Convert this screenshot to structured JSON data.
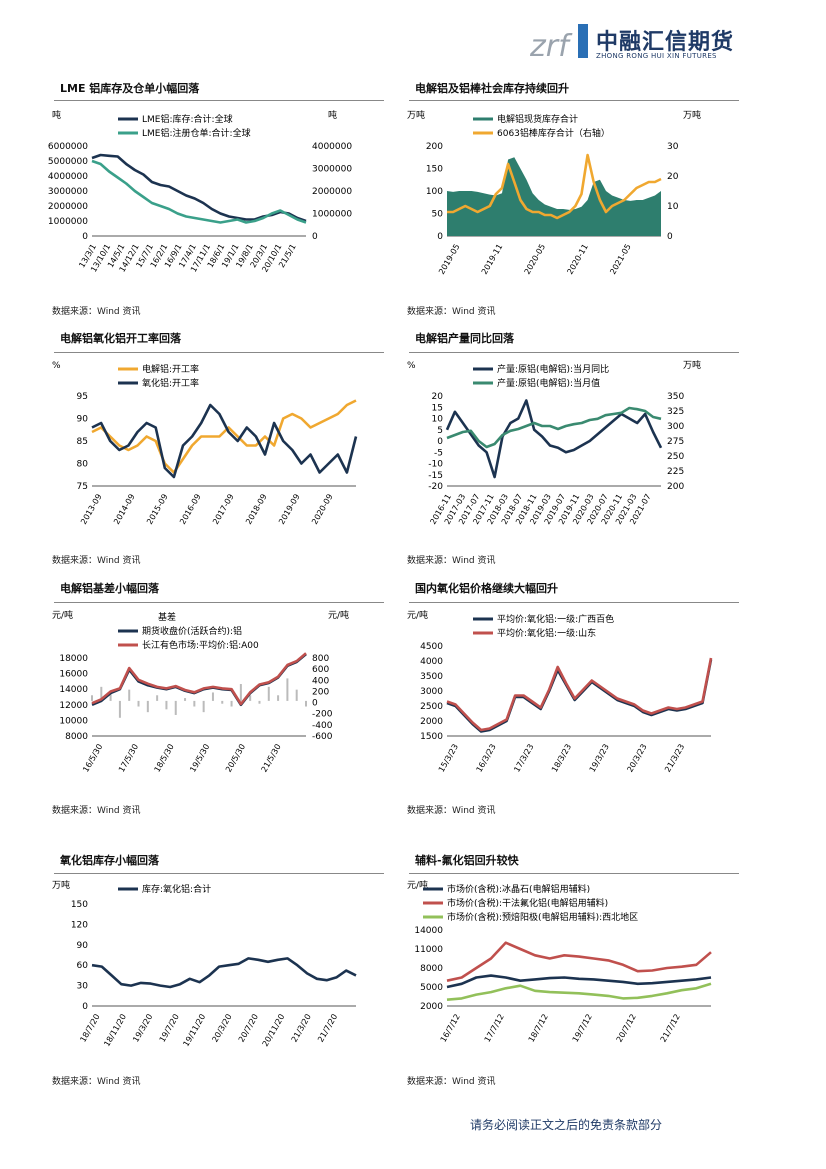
{
  "header": {
    "logo_mark": "zrf",
    "logo_cn": "中融汇信期货",
    "logo_en": "ZHONG RONG HUI XIN FUTURES"
  },
  "footer": {
    "disclaimer": "请务必阅读正文之后的免责条款部分"
  },
  "source_label": "数据来源：Wind 资讯",
  "panels": [
    {
      "title": "LME 铝库存及仓单小幅回落",
      "chart_data": {
        "type": "line",
        "left_unit": "吨",
        "right_unit": "吨",
        "legend": [
          "LME铝:库存:合计:全球",
          "LME铝:注册仓单:合计:全球"
        ],
        "left_ticks": [
          "6000000",
          "5000000",
          "4000000",
          "3000000",
          "2000000",
          "1000000",
          "0"
        ],
        "right_ticks": [
          "4000000",
          "3000000",
          "2000000",
          "1000000",
          "0"
        ],
        "x_ticks": [
          "13/3/1",
          "13/10/1",
          "14/5/1",
          "14/12/1",
          "15/7/1",
          "16/2/1",
          "16/9/1",
          "17/4/1",
          "17/11/1",
          "18/6/1",
          "19/1/1",
          "19/8/1",
          "20/3/1",
          "20/10/1",
          "21/5/1"
        ],
        "ylim": [
          0,
          6000000
        ],
        "series": [
          {
            "name": "LME铝:库存:合计:全球",
            "color": "#1c3350",
            "values": [
              5200000,
              5400000,
              5350000,
              5300000,
              4800000,
              4400000,
              4100000,
              3600000,
              3400000,
              3300000,
              3000000,
              2700000,
              2500000,
              2200000,
              1800000,
              1500000,
              1300000,
              1200000,
              1100000,
              1100000,
              1300000,
              1400000,
              1600000,
              1500000,
              1200000,
              1000000
            ]
          },
          {
            "name": "LME铝:注册仓单:合计:全球",
            "color": "#3aa08a",
            "values": [
              5000000,
              4800000,
              4300000,
              3900000,
              3500000,
              3000000,
              2600000,
              2200000,
              2000000,
              1800000,
              1500000,
              1300000,
              1200000,
              1100000,
              1000000,
              900000,
              1000000,
              1100000,
              900000,
              1000000,
              1200000,
              1500000,
              1700000,
              1400000,
              1100000,
              900000
            ]
          }
        ]
      }
    },
    {
      "title": "电解铝及铝棒社会库存持续回升",
      "chart_data": {
        "type": "area",
        "left_unit": "万吨",
        "right_unit": "万吨",
        "legend": [
          "电解铝现货库存合计",
          "6063铝棒库存合计（右轴）"
        ],
        "left_ticks": [
          "200",
          "150",
          "100",
          "50",
          "0"
        ],
        "right_ticks": [
          "30",
          "20",
          "10",
          "0"
        ],
        "x_ticks": [
          "2019-05",
          "2019-11",
          "2020-05",
          "2020-11",
          "2021-05"
        ],
        "ylim": [
          0,
          200
        ],
        "series": [
          {
            "name": "电解铝现货库存合计",
            "color": "#2e7e6e",
            "values": [
              100,
              98,
              100,
              100,
              100,
              98,
              95,
              92,
              90,
              95,
              170,
              175,
              150,
              125,
              95,
              80,
              70,
              65,
              60,
              60,
              58,
              60,
              65,
              80,
              120,
              125,
              100,
              90,
              85,
              80,
              78,
              80,
              80,
              85,
              90,
              100
            ]
          },
          {
            "name": "6063铝棒库存合计（右轴）",
            "color": "#f0a830",
            "values": [
              8,
              8,
              9,
              10,
              9,
              8,
              9,
              10,
              14,
              16,
              24,
              18,
              12,
              9,
              8,
              8,
              7,
              7,
              6,
              7,
              8,
              10,
              14,
              27,
              18,
              12,
              8,
              10,
              11,
              12,
              14,
              16,
              17,
              18,
              18,
              19
            ]
          }
        ]
      }
    },
    {
      "title": "电解铝氧化铝开工率回落",
      "chart_data": {
        "type": "line",
        "left_unit": "%",
        "legend": [
          "电解铝:开工率",
          "氧化铝:开工率"
        ],
        "left_ticks": [
          "95",
          "90",
          "85",
          "80",
          "75"
        ],
        "x_ticks": [
          "2013-09",
          "2014-09",
          "2015-09",
          "2016-09",
          "2017-09",
          "2018-09",
          "2019-09",
          "2020-09"
        ],
        "ylim": [
          75,
          95
        ],
        "series": [
          {
            "name": "电解铝:开工率",
            "color": "#f0a830",
            "values": [
              87,
              88,
              86,
              84,
              83,
              84,
              86,
              85,
              80,
              78,
              81,
              84,
              86,
              86,
              86,
              88,
              86,
              84,
              84,
              86,
              84,
              90,
              91,
              90,
              88,
              89,
              90,
              91,
              93,
              94
            ]
          },
          {
            "name": "氧化铝:开工率",
            "color": "#1c3350",
            "values": [
              88,
              89,
              85,
              83,
              84,
              87,
              89,
              88,
              79,
              77,
              84,
              86,
              89,
              93,
              91,
              87,
              85,
              88,
              86,
              82,
              89,
              85,
              83,
              80,
              82,
              78,
              80,
              82,
              78,
              86
            ]
          }
        ]
      }
    },
    {
      "title": "电解铝产量同比回落",
      "chart_data": {
        "type": "line",
        "left_unit": "%",
        "right_unit": "万吨",
        "legend": [
          "产量:原铝(电解铝):当月同比",
          "产量:原铝(电解铝):当月值"
        ],
        "left_ticks": [
          "20",
          "15",
          "10",
          "5",
          "0",
          "-5",
          "-10",
          "-15",
          "-20"
        ],
        "right_ticks": [
          "350",
          "325",
          "300",
          "275",
          "250",
          "225",
          "200"
        ],
        "x_ticks": [
          "2016-11",
          "2017-03",
          "2017-07",
          "2017-11",
          "2018-03",
          "2018-07",
          "2018-11",
          "2019-03",
          "2019-07",
          "2019-11",
          "2020-03",
          "2020-07",
          "2020-11",
          "2021-03",
          "2021-07"
        ],
        "ylim": [
          -20,
          20
        ],
        "series": [
          {
            "name": "产量:原铝(电解铝):当月同比",
            "color": "#1c3350",
            "values": [
              5,
              13,
              8,
              3,
              -2,
              -5,
              -16,
              2,
              8,
              10,
              18,
              5,
              2,
              -2,
              -3,
              -5,
              -4,
              -2,
              0,
              3,
              6,
              9,
              12,
              10,
              8,
              12,
              4,
              -3
            ]
          },
          {
            "name": "产量:原铝(电解铝):当月值",
            "color": "#3a8a70",
            "values": [
              280,
              285,
              290,
              292,
              275,
              265,
              270,
              285,
              292,
              295,
              300,
              305,
              300,
              300,
              295,
              300,
              303,
              305,
              310,
              312,
              318,
              320,
              322,
              330,
              328,
              325,
              315,
              312
            ]
          }
        ]
      }
    },
    {
      "title": "电解铝基差小幅回落",
      "chart_data": {
        "type": "line",
        "left_unit": "元/吨",
        "right_unit": "元/吨",
        "bar_legend": "基差",
        "legend": [
          "期货收盘价(活跃合约):铝",
          "长江有色市场:平均价:铝:A00"
        ],
        "left_ticks": [
          "18000",
          "16000",
          "14000",
          "12000",
          "10000",
          "8000"
        ],
        "right_ticks": [
          "800",
          "600",
          "400",
          "200",
          "0",
          "-200",
          "-400",
          "-600"
        ],
        "x_ticks": [
          "16/5/30",
          "17/5/30",
          "18/5/30",
          "19/5/30",
          "20/5/30",
          "21/5/30"
        ],
        "ylim": [
          8000,
          18000
        ],
        "series": [
          {
            "name": "期货收盘价(活跃合约):铝",
            "color": "#1c3350",
            "values": [
              12000,
              12500,
              13500,
              14000,
              16500,
              15000,
              14500,
              14200,
              14000,
              14300,
              13800,
              13500,
              14000,
              14200,
              14000,
              13900,
              12000,
              13500,
              14500,
              14800,
              15500,
              17000,
              17500,
              18500
            ]
          },
          {
            "name": "长江有色市场:平均价:铝:A00",
            "color": "#c0504d",
            "values": [
              12200,
              12700,
              13700,
              14100,
              16700,
              15200,
              14700,
              14300,
              14100,
              14400,
              13900,
              13600,
              14100,
              14300,
              14100,
              14000,
              12100,
              13600,
              14600,
              14900,
              15600,
              17100,
              17600,
              18600
            ]
          }
        ],
        "basis": [
          100,
          250,
          150,
          -300,
          200,
          -100,
          -200,
          100,
          -150,
          -250,
          50,
          -100,
          -200,
          150,
          -50,
          -100,
          300,
          100,
          -50,
          250,
          100,
          400,
          200,
          -100
        ]
      }
    },
    {
      "title": "国内氧化铝价格继续大幅回升",
      "chart_data": {
        "type": "line",
        "left_unit": "元/吨",
        "legend": [
          "平均价:氧化铝:一级:广西百色",
          "平均价:氧化铝:一级:山东"
        ],
        "left_ticks": [
          "4500",
          "4000",
          "3500",
          "3000",
          "2500",
          "2000",
          "1500"
        ],
        "x_ticks": [
          "15/3/23",
          "16/3/23",
          "17/3/23",
          "18/3/23",
          "19/3/23",
          "20/3/23",
          "21/3/23"
        ],
        "ylim": [
          1500,
          4500
        ],
        "series": [
          {
            "name": "平均价:氧化铝:一级:广西百色",
            "color": "#1c3350",
            "values": [
              2600,
              2500,
              2200,
              1900,
              1650,
              1700,
              1850,
              2000,
              2800,
              2800,
              2600,
              2400,
              3000,
              3700,
              3200,
              2700,
              3000,
              3300,
              3100,
              2900,
              2700,
              2600,
              2500,
              2300,
              2200,
              2300,
              2400,
              2350,
              2400,
              2500,
              2600,
              4050
            ]
          },
          {
            "name": "平均价:氧化铝:一级:山东",
            "color": "#c0504d",
            "values": [
              2650,
              2550,
              2250,
              1950,
              1700,
              1750,
              1900,
              2050,
              2850,
              2850,
              2650,
              2450,
              3050,
              3800,
              3250,
              2750,
              3050,
              3350,
              3150,
              2950,
              2750,
              2650,
              2550,
              2350,
              2250,
              2350,
              2450,
              2400,
              2450,
              2550,
              2650,
              4100
            ]
          }
        ]
      }
    },
    {
      "title": "氧化铝库存小幅回落",
      "chart_data": {
        "type": "line",
        "left_unit": "万吨",
        "legend": [
          "库存:氧化铝:合计"
        ],
        "left_ticks": [
          "150",
          "120",
          "90",
          "60",
          "30",
          "0"
        ],
        "x_ticks": [
          "18/7/20",
          "18/11/20",
          "19/3/20",
          "19/7/20",
          "19/11/20",
          "20/3/20",
          "20/7/20",
          "20/11/20",
          "21/3/20",
          "21/7/20"
        ],
        "ylim": [
          0,
          150
        ],
        "series": [
          {
            "name": "库存:氧化铝:合计",
            "color": "#1c3350",
            "values": [
              60,
              58,
              45,
              32,
              30,
              34,
              33,
              30,
              28,
              32,
              40,
              35,
              45,
              58,
              60,
              62,
              70,
              68,
              65,
              68,
              70,
              60,
              48,
              40,
              38,
              42,
              52,
              45
            ]
          }
        ]
      }
    },
    {
      "title": "辅料-氟化铝回升较快",
      "chart_data": {
        "type": "line",
        "left_unit": "元/吨",
        "legend": [
          "市场价(含税):冰晶石(电解铝用辅料)",
          "市场价(含税):干法氟化铝(电解铝用辅料)",
          "市场价(含税):预焙阳极(电解铝用辅料):西北地区"
        ],
        "left_ticks": [
          "14000",
          "11000",
          "8000",
          "5000",
          "2000"
        ],
        "x_ticks": [
          "16/7/12",
          "17/7/12",
          "18/7/12",
          "19/7/12",
          "20/7/12",
          "21/7/12"
        ],
        "ylim": [
          2000,
          14000
        ],
        "series": [
          {
            "name": "市场价(含税):冰晶石(电解铝用辅料)",
            "color": "#1c3350",
            "values": [
              5000,
              5500,
              6500,
              6800,
              6500,
              6000,
              6200,
              6400,
              6500,
              6300,
              6200,
              6000,
              5800,
              5500,
              5600,
              5800,
              6000,
              6200,
              6500
            ]
          },
          {
            "name": "市场价(含税):干法氟化铝(电解铝用辅料)",
            "color": "#c0504d",
            "values": [
              6000,
              6500,
              8000,
              9500,
              12000,
              11000,
              10000,
              9500,
              10000,
              9800,
              9500,
              9200,
              8500,
              7500,
              7600,
              8000,
              8200,
              8500,
              10500
            ]
          },
          {
            "name": "市场价(含税):预焙阳极(电解铝用辅料):西北地区",
            "color": "#92c05a",
            "values": [
              3000,
              3200,
              3800,
              4200,
              4800,
              5200,
              4400,
              4200,
              4100,
              4000,
              3800,
              3600,
              3200,
              3300,
              3600,
              4000,
              4500,
              4800,
              5500
            ]
          }
        ]
      }
    }
  ]
}
